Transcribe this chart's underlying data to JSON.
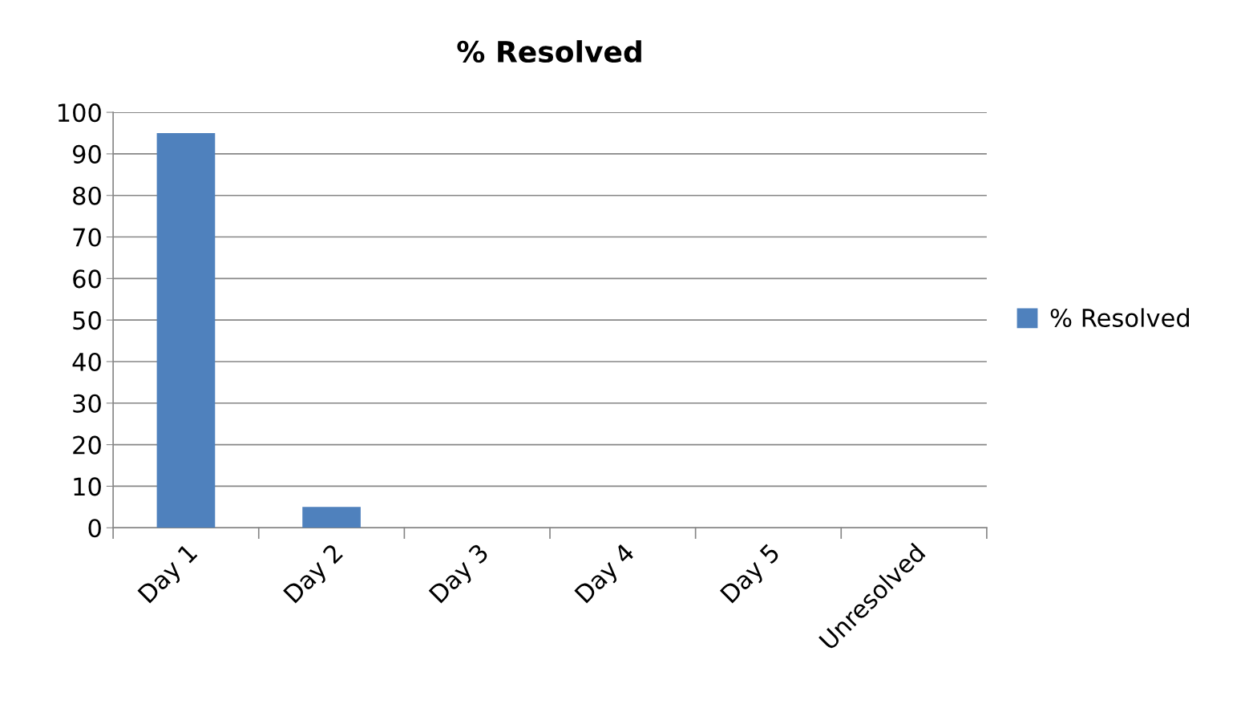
{
  "chart_data": {
    "type": "bar",
    "title": "% Resolved",
    "categories": [
      "Day 1",
      "Day 2",
      "Day 3",
      "Day 4",
      "Day 5",
      "Unresolved"
    ],
    "series": [
      {
        "name": "% Resolved",
        "color": "#4f81bd",
        "values": [
          95,
          5,
          0,
          0,
          0,
          0
        ]
      }
    ],
    "ylim": [
      0,
      100
    ],
    "yticks": [
      0,
      10,
      20,
      30,
      40,
      50,
      60,
      70,
      80,
      90,
      100
    ],
    "grid": "y",
    "legend": "right"
  }
}
